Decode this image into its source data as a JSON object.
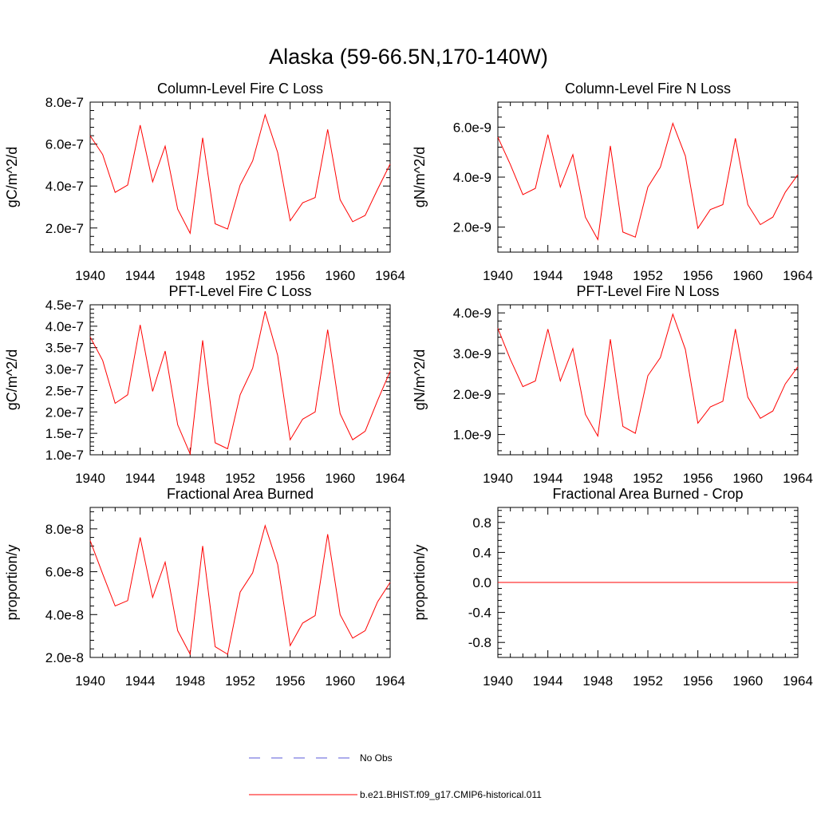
{
  "figure_title": "Alaska (59-66.5N,170-140W)",
  "colors": {
    "model": "#ff0000",
    "obs": "#5a5ad8",
    "axis": "#000000"
  },
  "legend": {
    "entries": [
      {
        "label": "No Obs",
        "style": "dashed",
        "color": "#5a5ad8"
      },
      {
        "label": "b.e21.BHIST.f09_g17.CMIP6-historical.011",
        "style": "solid",
        "color": "#ff0000"
      }
    ]
  },
  "chart_data": [
    {
      "type": "line",
      "title": "Column-Level Fire C Loss",
      "ylabel": "gC/m^2/d",
      "xlim": [
        1940,
        1964
      ],
      "ylim": [
        8.5e-08,
        8e-07
      ],
      "xticks": [
        1940,
        1944,
        1948,
        1952,
        1956,
        1960,
        1964
      ],
      "yticks": [
        2e-07,
        4e-07,
        6e-07,
        8e-07
      ],
      "ytick_labels": [
        "2.0e-7",
        "4.0e-7",
        "6.0e-7",
        "8.0e-7"
      ],
      "x": [
        1940,
        1941,
        1942,
        1943,
        1944,
        1945,
        1946,
        1947,
        1948,
        1949,
        1950,
        1951,
        1952,
        1953,
        1954,
        1955,
        1956,
        1957,
        1958,
        1959,
        1960,
        1961,
        1962,
        1963,
        1964
      ],
      "series": [
        {
          "values": [
            6.4e-07,
            5.5e-07,
            3.7e-07,
            4.05e-07,
            6.9e-07,
            4.2e-07,
            5.9e-07,
            2.9e-07,
            1.75e-07,
            6.3e-07,
            2.2e-07,
            1.95e-07,
            4.05e-07,
            5.2e-07,
            7.4e-07,
            5.6e-07,
            2.35e-07,
            3.2e-07,
            3.45e-07,
            6.7e-07,
            3.35e-07,
            2.3e-07,
            2.6e-07,
            3.85e-07,
            5.05e-07
          ]
        }
      ]
    },
    {
      "type": "line",
      "title": "Column-Level Fire N Loss",
      "ylabel": "gN/m^2/d",
      "xlim": [
        1940,
        1964
      ],
      "ylim": [
        1e-09,
        7e-09
      ],
      "xticks": [
        1940,
        1944,
        1948,
        1952,
        1956,
        1960,
        1964
      ],
      "yticks": [
        2e-09,
        4e-09,
        6e-09
      ],
      "ytick_labels": [
        "2.0e-9",
        "4.0e-9",
        "6.0e-9"
      ],
      "x": [
        1940,
        1941,
        1942,
        1943,
        1944,
        1945,
        1946,
        1947,
        1948,
        1949,
        1950,
        1951,
        1952,
        1953,
        1954,
        1955,
        1956,
        1957,
        1958,
        1959,
        1960,
        1961,
        1962,
        1963,
        1964
      ],
      "series": [
        {
          "values": [
            5.6e-09,
            4.5e-09,
            3.3e-09,
            3.55e-09,
            5.7e-09,
            3.6e-09,
            4.9e-09,
            2.4e-09,
            1.5e-09,
            5.25e-09,
            1.8e-09,
            1.6e-09,
            3.6e-09,
            4.4e-09,
            6.15e-09,
            4.85e-09,
            1.95e-09,
            2.7e-09,
            2.9e-09,
            5.55e-09,
            2.9e-09,
            2.1e-09,
            2.4e-09,
            3.4e-09,
            4.1e-09
          ]
        }
      ]
    },
    {
      "type": "line",
      "title": "PFT-Level Fire C Loss",
      "ylabel": "gC/m^2/d",
      "xlim": [
        1940,
        1964
      ],
      "ylim": [
        1e-07,
        4.5e-07
      ],
      "xticks": [
        1940,
        1944,
        1948,
        1952,
        1956,
        1960,
        1964
      ],
      "yticks": [
        1e-07,
        1.5e-07,
        2e-07,
        2.5e-07,
        3e-07,
        3.5e-07,
        4e-07,
        4.5e-07
      ],
      "ytick_labels": [
        "1.0e-7",
        "1.5e-7",
        "2.0e-7",
        "2.5e-7",
        "3.0e-7",
        "3.5e-7",
        "4.0e-7",
        "4.5e-7"
      ],
      "x": [
        1940,
        1941,
        1942,
        1943,
        1944,
        1945,
        1946,
        1947,
        1948,
        1949,
        1950,
        1951,
        1952,
        1953,
        1954,
        1955,
        1956,
        1957,
        1958,
        1959,
        1960,
        1961,
        1962,
        1963,
        1964
      ],
      "series": [
        {
          "values": [
            3.75e-07,
            3.2e-07,
            2.2e-07,
            2.4e-07,
            4.03e-07,
            2.48e-07,
            3.42e-07,
            1.7e-07,
            1.02e-07,
            3.67e-07,
            1.28e-07,
            1.14e-07,
            2.4e-07,
            3.02e-07,
            4.35e-07,
            3.32e-07,
            1.35e-07,
            1.83e-07,
            2e-07,
            3.92e-07,
            1.96e-07,
            1.35e-07,
            1.55e-07,
            2.27e-07,
            2.95e-07
          ]
        }
      ]
    },
    {
      "type": "line",
      "title": "PFT-Level Fire N Loss",
      "ylabel": "gN/m^2/d",
      "xlim": [
        1940,
        1964
      ],
      "ylim": [
        5e-10,
        4.2e-09
      ],
      "xticks": [
        1940,
        1944,
        1948,
        1952,
        1956,
        1960,
        1964
      ],
      "yticks": [
        1e-09,
        2e-09,
        3e-09,
        4e-09
      ],
      "ytick_labels": [
        "1.0e-9",
        "2.0e-9",
        "3.0e-9",
        "4.0e-9"
      ],
      "x": [
        1940,
        1941,
        1942,
        1943,
        1944,
        1945,
        1946,
        1947,
        1948,
        1949,
        1950,
        1951,
        1952,
        1953,
        1954,
        1955,
        1956,
        1957,
        1958,
        1959,
        1960,
        1961,
        1962,
        1963,
        1964
      ],
      "series": [
        {
          "values": [
            3.62e-09,
            2.85e-09,
            2.18e-09,
            2.32e-09,
            3.6e-09,
            2.32e-09,
            3.12e-09,
            1.5e-09,
            9.6e-10,
            3.35e-09,
            1.2e-09,
            1.03e-09,
            2.45e-09,
            2.9e-09,
            3.97e-09,
            3.1e-09,
            1.28e-09,
            1.68e-09,
            1.82e-09,
            3.6e-09,
            1.92e-09,
            1.4e-09,
            1.58e-09,
            2.25e-09,
            2.67e-09
          ]
        }
      ]
    },
    {
      "type": "line",
      "title": "Fractional Area Burned",
      "ylabel": "proportion/y",
      "xlim": [
        1940,
        1964
      ],
      "ylim": [
        2e-08,
        9e-08
      ],
      "xticks": [
        1940,
        1944,
        1948,
        1952,
        1956,
        1960,
        1964
      ],
      "yticks": [
        2e-08,
        4e-08,
        6e-08,
        8e-08
      ],
      "ytick_labels": [
        "2.0e-8",
        "4.0e-8",
        "6.0e-8",
        "8.0e-8"
      ],
      "x": [
        1940,
        1941,
        1942,
        1943,
        1944,
        1945,
        1946,
        1947,
        1948,
        1949,
        1950,
        1951,
        1952,
        1953,
        1954,
        1955,
        1956,
        1957,
        1958,
        1959,
        1960,
        1961,
        1962,
        1963,
        1964
      ],
      "series": [
        {
          "values": [
            7.45e-08,
            5.9e-08,
            4.4e-08,
            4.65e-08,
            7.6e-08,
            4.8e-08,
            6.45e-08,
            3.25e-08,
            2.15e-08,
            7.2e-08,
            2.5e-08,
            2.15e-08,
            5.05e-08,
            5.95e-08,
            8.15e-08,
            6.35e-08,
            2.55e-08,
            3.6e-08,
            3.95e-08,
            7.75e-08,
            4e-08,
            2.9e-08,
            3.25e-08,
            4.6e-08,
            5.5e-08
          ]
        }
      ]
    },
    {
      "type": "line",
      "title": "Fractional Area Burned - Crop",
      "ylabel": "proportion/y",
      "xlim": [
        1940,
        1964
      ],
      "ylim": [
        -1.0,
        1.0
      ],
      "xticks": [
        1940,
        1944,
        1948,
        1952,
        1956,
        1960,
        1964
      ],
      "yticks": [
        -0.8,
        -0.4,
        0.0,
        0.4,
        0.8
      ],
      "ytick_labels": [
        "-0.8",
        "-0.4",
        "0.0",
        "0.4",
        "0.8"
      ],
      "x": [
        1940,
        1941,
        1942,
        1943,
        1944,
        1945,
        1946,
        1947,
        1948,
        1949,
        1950,
        1951,
        1952,
        1953,
        1954,
        1955,
        1956,
        1957,
        1958,
        1959,
        1960,
        1961,
        1962,
        1963,
        1964
      ],
      "series": [
        {
          "values": [
            0,
            0,
            0,
            0,
            0,
            0,
            0,
            0,
            0,
            0,
            0,
            0,
            0,
            0,
            0,
            0,
            0,
            0,
            0,
            0,
            0,
            0,
            0,
            0,
            0
          ]
        }
      ]
    }
  ]
}
